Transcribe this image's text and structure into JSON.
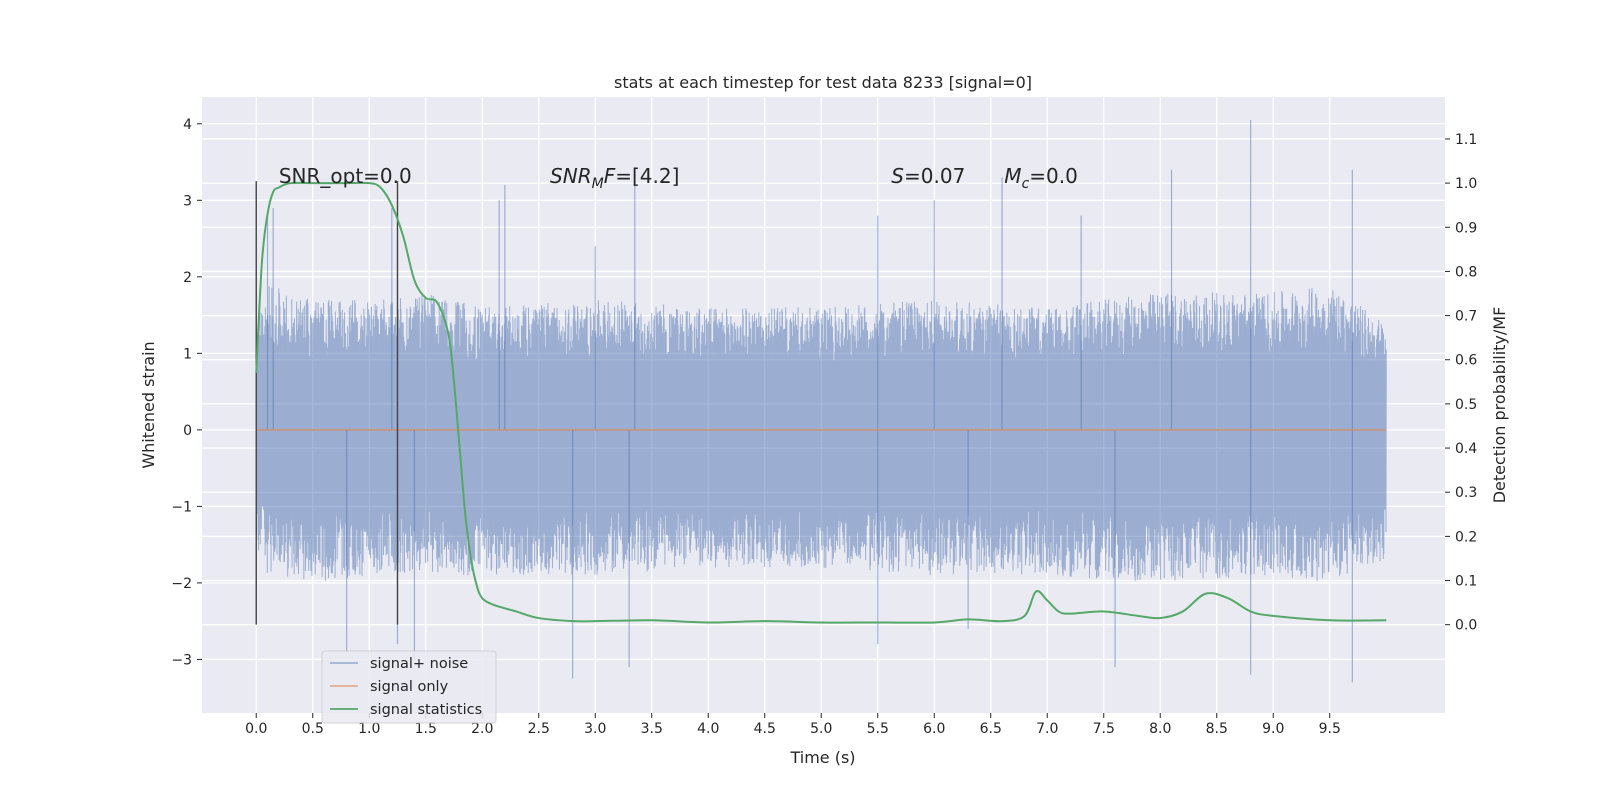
{
  "chart_data": {
    "type": "line",
    "title": "stats at each timestep for test data 8233 [signal=0]",
    "xlabel": "Time (s)",
    "ylabel": "Whitened strain",
    "ylabel_right": "Detection probability/MF",
    "xlim": [
      -0.48,
      10.52
    ],
    "ylim": [
      -3.7,
      4.35
    ],
    "ylim_right": [
      -0.2,
      1.195
    ],
    "x_ticks": [
      "0.0",
      "0.5",
      "1.0",
      "1.5",
      "2.0",
      "2.5",
      "3.0",
      "3.5",
      "4.0",
      "4.5",
      "5.0",
      "5.5",
      "6.0",
      "6.5",
      "7.0",
      "7.5",
      "8.0",
      "8.5",
      "9.0",
      "9.5"
    ],
    "y_ticks": [
      "−3",
      "−2",
      "−1",
      "0",
      "1",
      "2",
      "3",
      "4"
    ],
    "y_ticks_right": [
      "0.0",
      "0.1",
      "0.2",
      "0.3",
      "0.4",
      "0.5",
      "0.6",
      "0.7",
      "0.8",
      "0.9",
      "1.0",
      "1.1"
    ],
    "grid": true,
    "legend_position": "lower-left",
    "series": [
      {
        "name": "signal+ noise",
        "axis": "left",
        "color": "#4c72b0",
        "opacity": 0.5,
        "x_range": [
          0.0,
          10.0
        ],
        "envelope_upper": [
          [
            0,
            1.4
          ],
          [
            0.1,
            1.9
          ],
          [
            0.5,
            1.7
          ],
          [
            1.0,
            1.7
          ],
          [
            1.5,
            1.8
          ],
          [
            2.0,
            1.6
          ],
          [
            3.0,
            1.7
          ],
          [
            4.0,
            1.6
          ],
          [
            5.0,
            1.6
          ],
          [
            6.0,
            1.7
          ],
          [
            7.0,
            1.6
          ],
          [
            8.0,
            1.8
          ],
          [
            9.0,
            1.8
          ],
          [
            9.5,
            1.9
          ],
          [
            10.0,
            1.4
          ]
        ],
        "envelope_lower": [
          [
            0,
            -1.6
          ],
          [
            0.1,
            -1.9
          ],
          [
            0.5,
            -2.0
          ],
          [
            1.0,
            -1.9
          ],
          [
            1.5,
            -1.9
          ],
          [
            2.0,
            -1.9
          ],
          [
            3.0,
            -1.9
          ],
          [
            4.0,
            -1.8
          ],
          [
            5.0,
            -1.8
          ],
          [
            6.0,
            -1.9
          ],
          [
            7.0,
            -1.9
          ],
          [
            8.0,
            -2.0
          ],
          [
            9.0,
            -1.9
          ],
          [
            9.5,
            -2.0
          ],
          [
            10.0,
            -1.7
          ]
        ],
        "peaks": [
          [
            0.1,
            2.8
          ],
          [
            0.15,
            2.9
          ],
          [
            1.2,
            2.9
          ],
          [
            1.25,
            2.5
          ],
          [
            2.15,
            3.0
          ],
          [
            2.2,
            3.2
          ],
          [
            3.35,
            3.3
          ],
          [
            3.0,
            2.4
          ],
          [
            5.5,
            2.8
          ],
          [
            6.6,
            3.3
          ],
          [
            8.1,
            3.4
          ],
          [
            8.8,
            4.05
          ],
          [
            9.7,
            3.4
          ],
          [
            7.3,
            2.8
          ],
          [
            6.0,
            3.0
          ]
        ],
        "troughs": [
          [
            0.8,
            -2.9
          ],
          [
            1.25,
            -2.8
          ],
          [
            1.4,
            -3.0
          ],
          [
            2.8,
            -3.25
          ],
          [
            3.3,
            -3.1
          ],
          [
            5.5,
            -2.8
          ],
          [
            7.6,
            -3.1
          ],
          [
            8.8,
            -3.2
          ],
          [
            9.7,
            -3.3
          ],
          [
            6.3,
            -2.6
          ]
        ]
      },
      {
        "name": "signal only",
        "axis": "left",
        "color": "#dd8452",
        "x": [
          0.0,
          10.0
        ],
        "y": [
          0.0,
          0.0
        ]
      },
      {
        "name": "signal statistics",
        "axis": "right",
        "color": "#55a868",
        "x": [
          0.0,
          0.05,
          0.1,
          0.15,
          0.2,
          0.3,
          0.5,
          0.8,
          1.0,
          1.1,
          1.2,
          1.3,
          1.4,
          1.5,
          1.6,
          1.7,
          1.75,
          1.8,
          1.85,
          1.9,
          1.95,
          2.0,
          2.1,
          2.3,
          2.5,
          2.8,
          3.0,
          3.5,
          4.0,
          4.5,
          5.0,
          5.5,
          6.0,
          6.3,
          6.6,
          6.8,
          6.9,
          7.0,
          7.1,
          7.2,
          7.5,
          7.8,
          8.0,
          8.2,
          8.4,
          8.6,
          8.8,
          9.0,
          9.5,
          10.0
        ],
        "y": [
          0.57,
          0.82,
          0.93,
          0.98,
          0.99,
          1.0,
          1.0,
          1.0,
          1.0,
          0.99,
          0.95,
          0.88,
          0.78,
          0.74,
          0.73,
          0.66,
          0.55,
          0.4,
          0.25,
          0.15,
          0.09,
          0.06,
          0.045,
          0.03,
          0.015,
          0.008,
          0.008,
          0.01,
          0.005,
          0.008,
          0.005,
          0.005,
          0.005,
          0.012,
          0.008,
          0.02,
          0.075,
          0.055,
          0.03,
          0.025,
          0.03,
          0.02,
          0.015,
          0.03,
          0.07,
          0.06,
          0.03,
          0.02,
          0.01,
          0.01
        ]
      }
    ],
    "vlines": [
      0.0,
      1.25
    ],
    "annotations": [
      {
        "x": 0.2,
        "text": "SNR_opt=0.0"
      },
      {
        "x": 2.6,
        "base": "SNR",
        "sub": "M",
        "rest": "F=[4.2]"
      },
      {
        "x": 5.62,
        "base": "S",
        "rest": "=0.07"
      },
      {
        "x": 6.62,
        "base": "M",
        "sub": "c",
        "rest": "=0.0"
      }
    ],
    "annotation_y_right": 1.0
  }
}
